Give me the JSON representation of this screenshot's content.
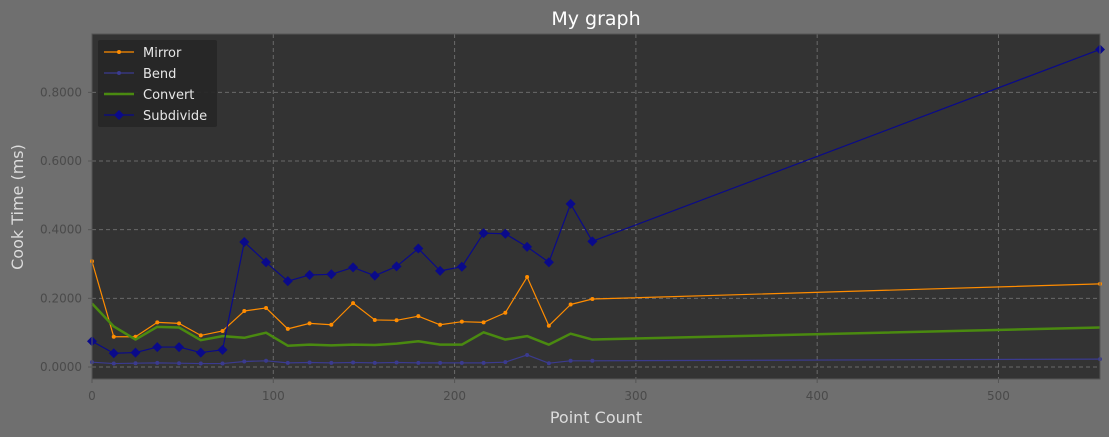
{
  "chart_data": {
    "type": "line",
    "title": "My graph",
    "xlabel": "Point Count",
    "ylabel": "Cook Time (ms)",
    "xlim": [
      0,
      556
    ],
    "ylim": [
      -0.035,
      0.97
    ],
    "xticks": [
      0,
      100,
      200,
      300,
      400,
      500
    ],
    "xtick_labels": [
      "0",
      "100",
      "200",
      "300",
      "400",
      "500"
    ],
    "yticks": [
      0.0,
      0.2,
      0.4,
      0.6,
      0.8
    ],
    "ytick_labels": [
      "0.0000",
      "0.2000",
      "0.4000",
      "0.6000",
      "0.8000"
    ],
    "grid": true,
    "legend_position": "top-left",
    "x": [
      0,
      12,
      24,
      36,
      48,
      60,
      72,
      84,
      96,
      108,
      120,
      132,
      144,
      156,
      168,
      180,
      192,
      204,
      216,
      228,
      240,
      252,
      264,
      276,
      556
    ],
    "series": [
      {
        "name": "Mirror",
        "color": "#ff8c00",
        "marker": "dot",
        "values": [
          0.308,
          0.088,
          0.088,
          0.13,
          0.127,
          0.092,
          0.105,
          0.163,
          0.172,
          0.111,
          0.127,
          0.123,
          0.186,
          0.137,
          0.136,
          0.148,
          0.123,
          0.132,
          0.13,
          0.158,
          0.262,
          0.12,
          0.182,
          0.198,
          0.242
        ]
      },
      {
        "name": "Bend",
        "color": "#3b3b8f",
        "marker": "dot",
        "values": [
          0.014,
          0.01,
          0.011,
          0.012,
          0.011,
          0.01,
          0.01,
          0.016,
          0.018,
          0.012,
          0.013,
          0.012,
          0.013,
          0.012,
          0.013,
          0.012,
          0.012,
          0.012,
          0.012,
          0.014,
          0.035,
          0.011,
          0.018,
          0.018,
          0.023
        ]
      },
      {
        "name": "Convert",
        "color": "#4a8a10",
        "marker": "none",
        "values": [
          0.185,
          0.118,
          0.08,
          0.117,
          0.115,
          0.078,
          0.09,
          0.085,
          0.1,
          0.062,
          0.065,
          0.063,
          0.065,
          0.064,
          0.068,
          0.075,
          0.065,
          0.065,
          0.101,
          0.08,
          0.09,
          0.065,
          0.097,
          0.08,
          0.115
        ]
      },
      {
        "name": "Subdivide",
        "color": "#0a0a8a",
        "marker": "diamond",
        "values": [
          0.075,
          0.04,
          0.042,
          0.058,
          0.058,
          0.042,
          0.05,
          0.364,
          0.305,
          0.25,
          0.268,
          0.27,
          0.29,
          0.266,
          0.293,
          0.345,
          0.28,
          0.292,
          0.39,
          0.388,
          0.35,
          0.305,
          0.475,
          0.366,
          0.925
        ]
      }
    ]
  }
}
